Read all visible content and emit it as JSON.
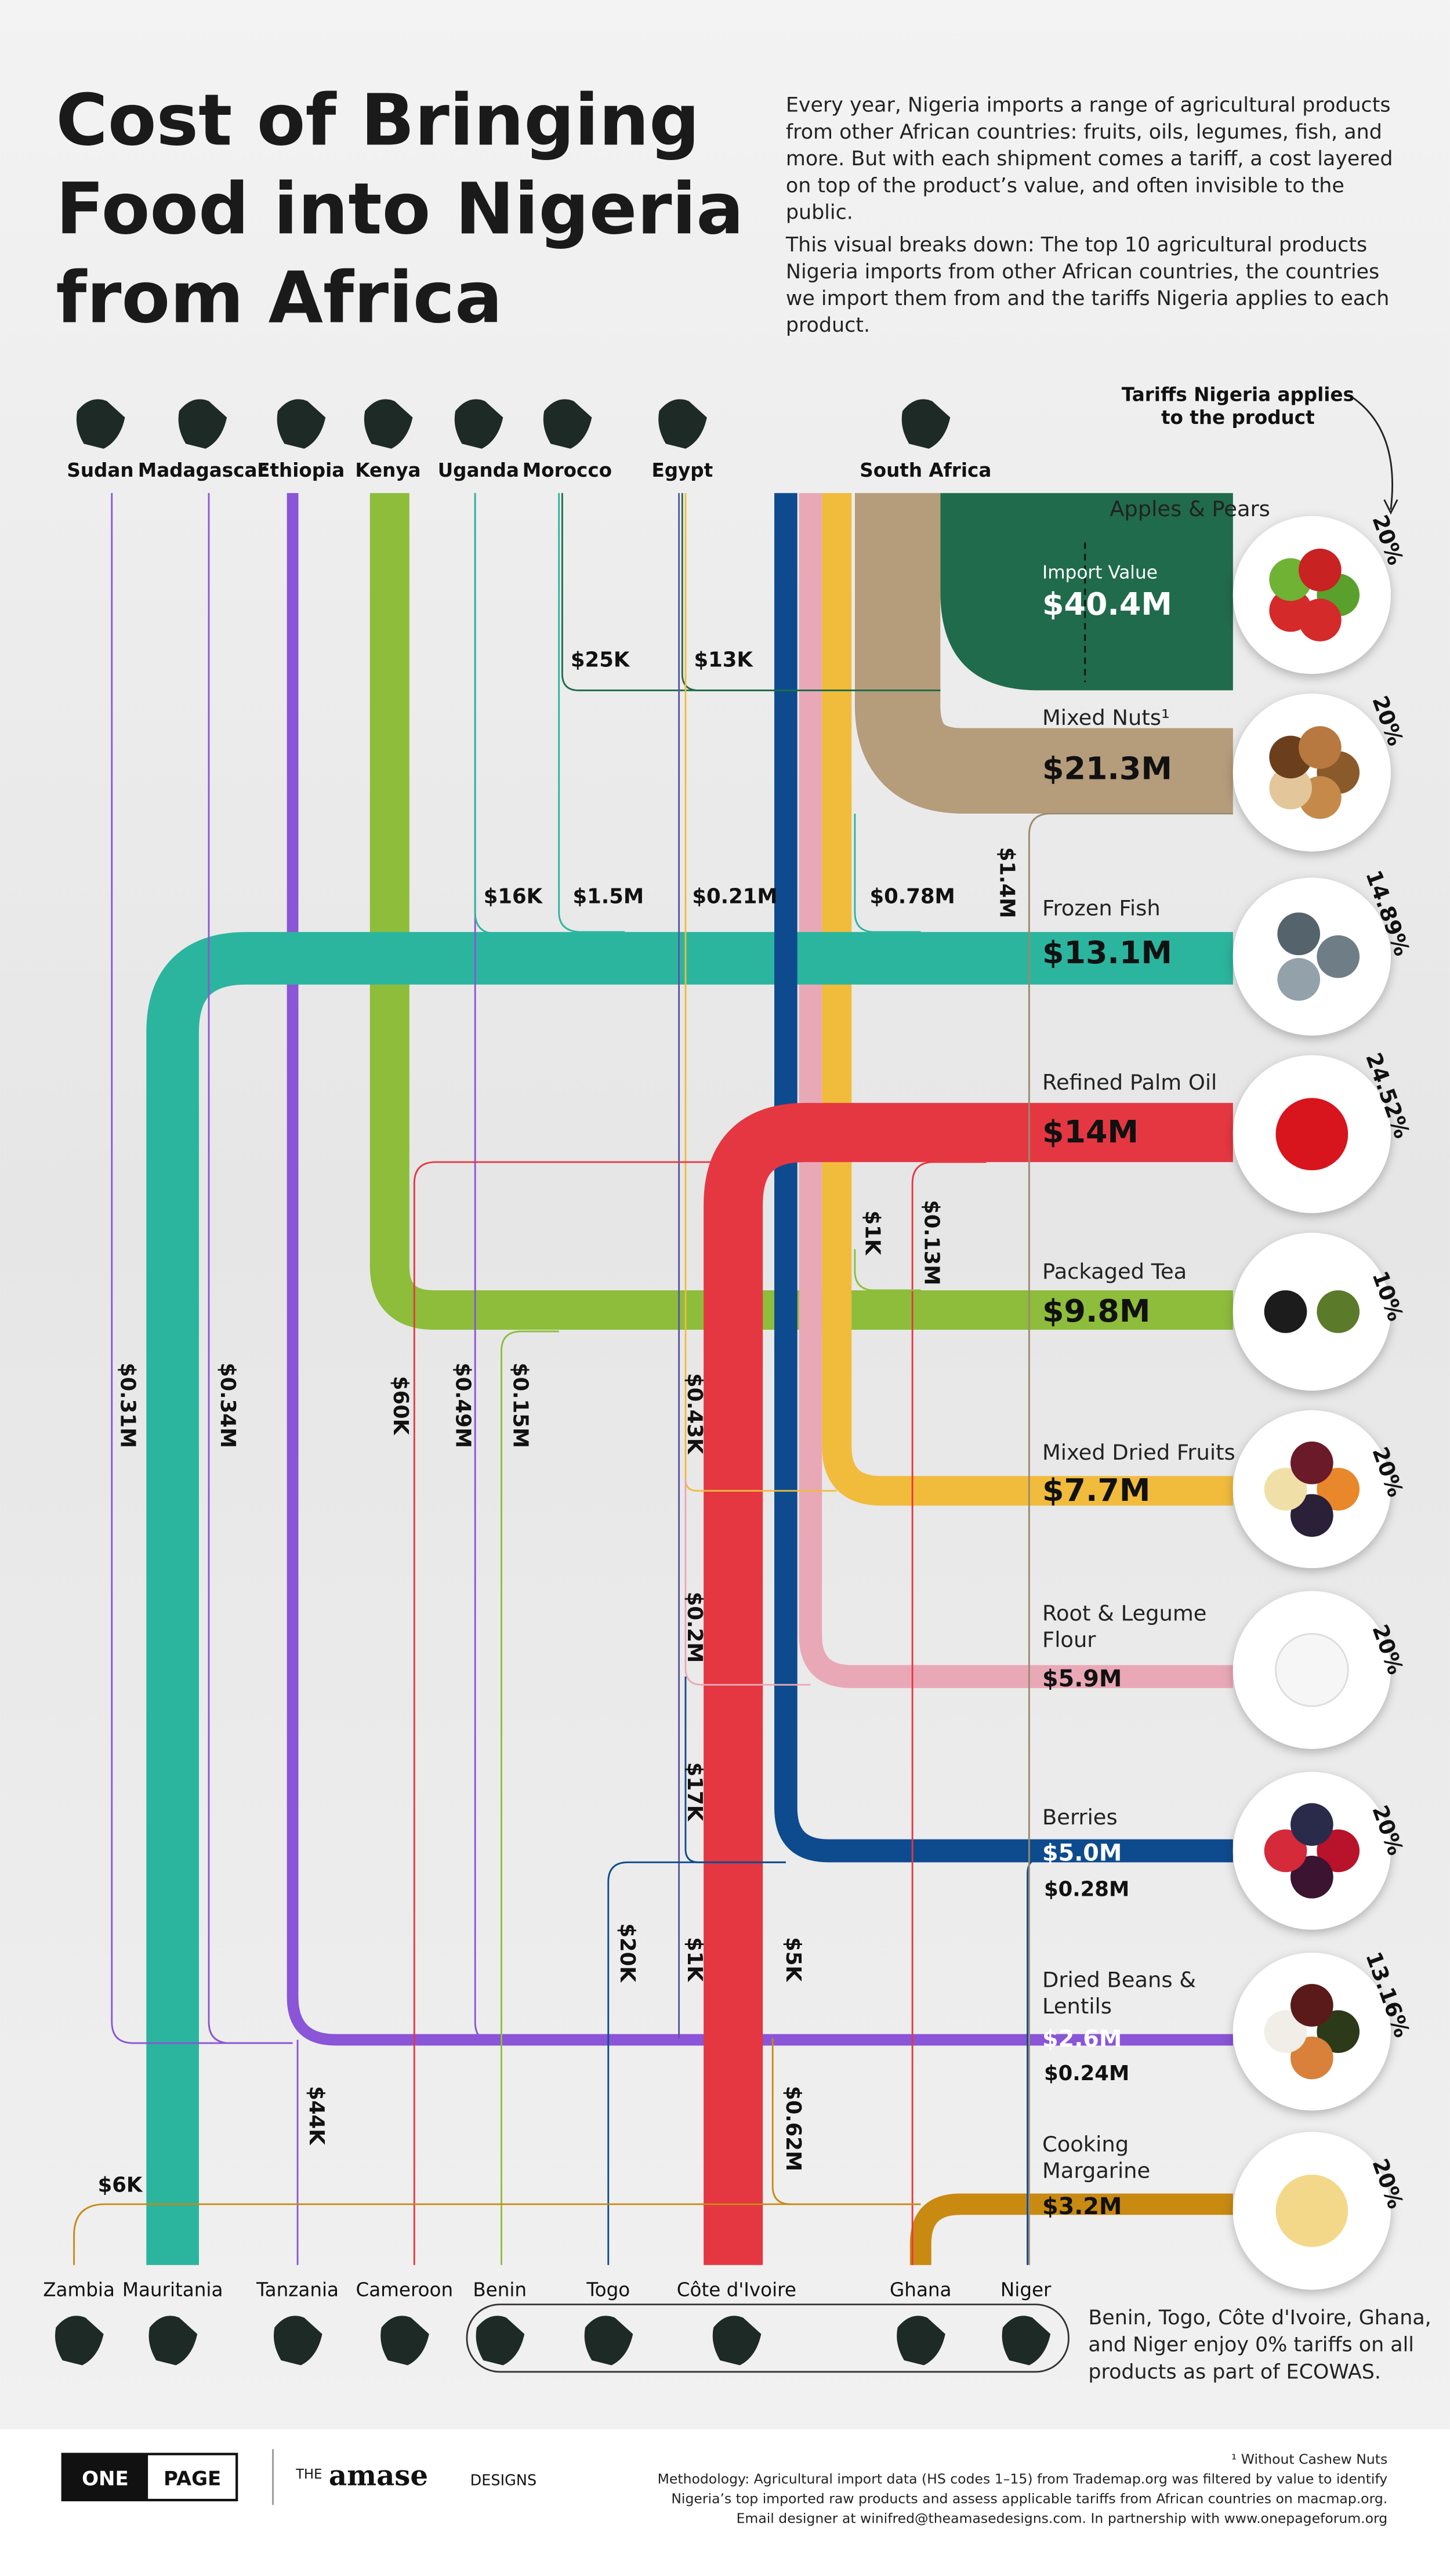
{
  "header": {
    "title_lines": [
      "Cost of Bringing",
      "Food into Nigeria",
      "from Africa"
    ],
    "intro": [
      [
        "Every year, Nigeria imports a range of agricultural products",
        "from other African countries: fruits, oils, legumes, fish, and",
        "more. But with each shipment comes a tariff, a cost layered",
        "on top of the product’s value, and often invisible to the",
        "public."
      ],
      [
        "This visual breaks down: The top 10 agricultural products",
        "Nigeria imports from other African countries, the countries",
        "we import them from and the tariffs Nigeria applies to each",
        "product."
      ]
    ]
  },
  "tariff_note": [
    "Tariffs Nigeria applies",
    "to the product"
  ],
  "import_value_label": "Import Value",
  "top_countries": [
    "Sudan",
    "Madagascar",
    "Ethiopia",
    "Kenya",
    "Uganda",
    "Morocco",
    "Egypt",
    "South Africa"
  ],
  "bottom_countries": [
    "Zambia",
    "Mauritania",
    "Tanzania",
    "Cameroon",
    "Benin",
    "Togo",
    "Côte d'Ivoire",
    "Ghana",
    "Niger"
  ],
  "products": [
    {
      "name_lines": [
        "Apples & Pears"
      ],
      "value": "$40.4M",
      "tariff": "20%"
    },
    {
      "name_lines": [
        "Mixed Nuts¹"
      ],
      "value": "$21.3M",
      "tariff": "20%"
    },
    {
      "name_lines": [
        "Frozen Fish"
      ],
      "value": "$13.1M",
      "tariff": "14.89%"
    },
    {
      "name_lines": [
        "Refined Palm Oil"
      ],
      "value": "$14M",
      "tariff": "24.52%"
    },
    {
      "name_lines": [
        "Packaged Tea"
      ],
      "value": "$9.8M",
      "tariff": "10%"
    },
    {
      "name_lines": [
        "Mixed Dried Fruits"
      ],
      "value": "$7.7M",
      "tariff": "20%"
    },
    {
      "name_lines": [
        "Root & Legume",
        "Flour"
      ],
      "value": "$5.9M",
      "tariff": "20%"
    },
    {
      "name_lines": [
        "Berries"
      ],
      "value": "$5.0M",
      "tariff": "20%"
    },
    {
      "name_lines": [
        "Dried Beans &",
        "Lentils"
      ],
      "value": "$2.6M",
      "tariff": "13.16%"
    },
    {
      "name_lines": [
        "Cooking",
        "Margarine"
      ],
      "value": "$3.2M",
      "tariff": "20%"
    }
  ],
  "flows": [
    "$25K",
    "$13K",
    "$16K",
    "$1.5M",
    "$0.21M",
    "$0.78M",
    "$1.4M",
    "$1K",
    "$0.13M",
    "$0.31M",
    "$0.34M",
    "$60K",
    "$0.49M",
    "$0.15M",
    "$0.43K",
    "$0.2M",
    "$17K",
    "$20K",
    "$1K",
    "$5K",
    "$0.28M",
    "$0.24M",
    "$44K",
    "$0.62M",
    "$6K"
  ],
  "ecowas_note": [
    "Benin, Togo, Côte d'Ivoire, Ghana,",
    "and Niger enjoy 0% tariffs on all",
    "products as part of ECOWAS."
  ],
  "footer": {
    "logo_one": "ONE",
    "logo_page": "PAGE",
    "amase_the": "THE",
    "amase_name": "amase",
    "amase_designs": "DESIGNS",
    "notes": [
      "¹ Without Cashew Nuts",
      "Methodology: Agricultural import data (HS codes 1–15) from Trademap.org was filtered by value to identify",
      "Nigeria’s top imported raw products and assess applicable tariffs from African countries on macmap.org.",
      "Email designer at winifred@theamasedesigns.com. In partnership with www.onepageforum.org"
    ]
  }
}
